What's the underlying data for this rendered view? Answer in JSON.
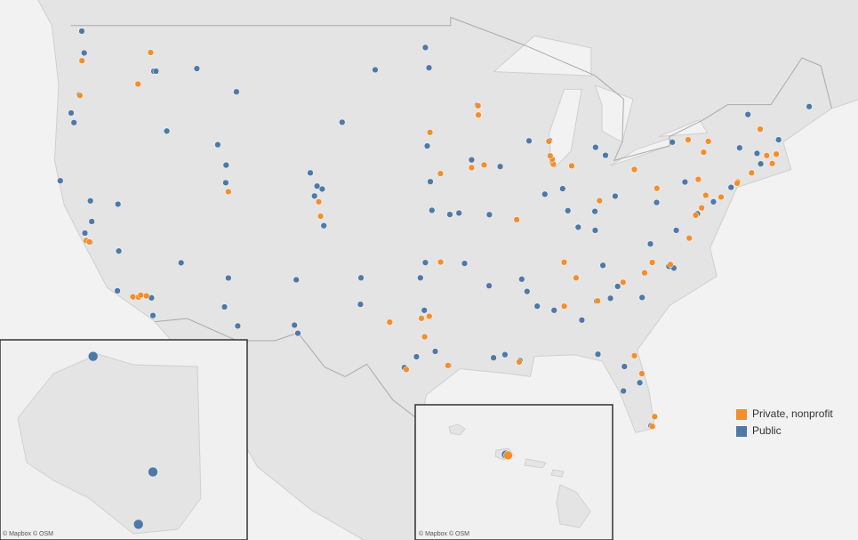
{
  "map": {
    "groups": [
      {
        "name": "Private, nonprofit",
        "color": "#f28e2b",
        "points": [
          [
            -122.17,
            37.43
          ],
          [
            -118.29,
            34.02
          ],
          [
            -118.71,
            34.04
          ],
          [
            -117.71,
            34.1
          ],
          [
            -118.13,
            34.14
          ],
          [
            -121.94,
            37.35
          ],
          [
            -111.65,
            40.25
          ],
          [
            -104.96,
            39.68
          ],
          [
            -104.82,
            38.85
          ],
          [
            -117.4,
            47.67
          ],
          [
            -118.33,
            46.07
          ],
          [
            -122.63,
            45.48
          ],
          [
            -122.48,
            47.26
          ],
          [
            -95.4,
            29.72
          ],
          [
            -96.78,
            32.84
          ],
          [
            -97.36,
            32.71
          ],
          [
            -97.12,
            31.55
          ],
          [
            -95.94,
            36.15
          ],
          [
            -95.95,
            41.27
          ],
          [
            -90.31,
            38.65
          ],
          [
            -87.6,
            41.79
          ],
          [
            -87.68,
            42.06
          ],
          [
            -86.24,
            41.7
          ],
          [
            -86.8,
            36.14
          ],
          [
            -78.94,
            36.0
          ],
          [
            -80.28,
            36.13
          ],
          [
            -84.32,
            33.79
          ],
          [
            -90.12,
            29.94
          ],
          [
            -80.28,
            25.72
          ],
          [
            -80.1,
            26.37
          ],
          [
            -81.05,
            29.19
          ],
          [
            -81.6,
            30.35
          ],
          [
            -77.07,
            38.91
          ],
          [
            -76.62,
            39.33
          ],
          [
            -75.19,
            39.95
          ],
          [
            -73.96,
            40.81
          ],
          [
            -74.0,
            40.73
          ],
          [
            -72.93,
            41.31
          ],
          [
            -71.4,
            41.83
          ],
          [
            -71.12,
            42.37
          ],
          [
            -71.1,
            42.35
          ],
          [
            -71.81,
            42.27
          ],
          [
            -72.29,
            43.7
          ],
          [
            -76.48,
            42.45
          ],
          [
            -77.63,
            43.13
          ],
          [
            -76.13,
            43.04
          ],
          [
            -79.94,
            40.44
          ],
          [
            -81.6,
            41.5
          ],
          [
            -84.18,
            39.74
          ],
          [
            -87.93,
            43.04
          ],
          [
            -93.17,
            44.94
          ],
          [
            -93.15,
            44.46
          ],
          [
            -93.65,
            41.6
          ],
          [
            -92.72,
            41.75
          ],
          [
            -76.88,
            40.95
          ],
          [
            -76.32,
            40.05
          ],
          [
            -77.54,
            37.57
          ],
          [
            -85.92,
            35.2
          ],
          [
            -86.79,
            33.46
          ],
          [
            -82.44,
            34.93
          ],
          [
            -80.85,
            35.5
          ],
          [
            -87.83,
            42.25
          ],
          [
            -96.73,
            43.53
          ],
          [
            -99.71,
            32.47
          ],
          [
            -98.48,
            29.46
          ],
          [
            -157.8,
            21.29
          ]
        ]
      },
      {
        "name": "Public",
        "color": "#4e79a7",
        "points": [
          [
            -122.31,
            47.65
          ],
          [
            -122.49,
            48.73
          ],
          [
            -117.16,
            46.73
          ],
          [
            -117.0,
            46.73
          ],
          [
            -116.2,
            43.6
          ],
          [
            -113.98,
            46.86
          ],
          [
            -111.05,
            45.67
          ],
          [
            -105.58,
            41.31
          ],
          [
            -105.08,
            40.57
          ],
          [
            -105.27,
            40.01
          ],
          [
            -111.84,
            40.76
          ],
          [
            -111.81,
            41.74
          ],
          [
            -119.81,
            39.54
          ],
          [
            -115.14,
            36.11
          ],
          [
            -110.95,
            32.23
          ],
          [
            -111.93,
            33.42
          ],
          [
            -111.65,
            35.19
          ],
          [
            -106.62,
            35.08
          ],
          [
            -106.75,
            32.28
          ],
          [
            -106.5,
            31.77
          ],
          [
            -101.87,
            33.58
          ],
          [
            -97.73,
            30.28
          ],
          [
            -96.34,
            30.62
          ],
          [
            -95.34,
            29.72
          ],
          [
            -98.62,
            29.58
          ],
          [
            -97.15,
            33.21
          ],
          [
            -97.44,
            35.2
          ],
          [
            -97.07,
            36.12
          ],
          [
            -95.26,
            38.95
          ],
          [
            -96.58,
            39.19
          ],
          [
            -96.7,
            40.82
          ],
          [
            -93.65,
            42.03
          ],
          [
            -91.53,
            41.66
          ],
          [
            -93.23,
            44.97
          ],
          [
            -89.4,
            43.07
          ],
          [
            -87.88,
            43.08
          ],
          [
            -87.65,
            41.87
          ],
          [
            -88.23,
            40.11
          ],
          [
            -86.91,
            40.42
          ],
          [
            -86.52,
            39.17
          ],
          [
            -83.02,
            40.0
          ],
          [
            -83.74,
            42.28
          ],
          [
            -84.48,
            42.72
          ],
          [
            -84.52,
            39.13
          ],
          [
            -85.76,
            38.21
          ],
          [
            -84.5,
            38.03
          ],
          [
            -83.93,
            35.95
          ],
          [
            -86.78,
            36.16
          ],
          [
            -89.94,
            35.12
          ],
          [
            -89.54,
            34.37
          ],
          [
            -88.79,
            33.46
          ],
          [
            -87.54,
            33.21
          ],
          [
            -85.49,
            32.6
          ],
          [
            -84.4,
            33.78
          ],
          [
            -83.37,
            33.95
          ],
          [
            -84.3,
            30.44
          ],
          [
            -82.34,
            29.65
          ],
          [
            -81.2,
            28.6
          ],
          [
            -82.41,
            28.06
          ],
          [
            -80.37,
            25.76
          ],
          [
            -81.03,
            34.0
          ],
          [
            -82.84,
            34.68
          ],
          [
            -78.68,
            35.79
          ],
          [
            -79.05,
            35.9
          ],
          [
            -78.5,
            38.03
          ],
          [
            -80.42,
            37.23
          ],
          [
            -76.94,
            38.99
          ],
          [
            -75.75,
            39.68
          ],
          [
            -77.86,
            40.8
          ],
          [
            -79.96,
            40.44
          ],
          [
            -74.45,
            40.5
          ],
          [
            -72.25,
            41.81
          ],
          [
            -72.53,
            42.39
          ],
          [
            -73.2,
            44.48
          ],
          [
            -70.93,
            43.13
          ],
          [
            -68.67,
            44.9
          ],
          [
            -78.79,
            43.0
          ],
          [
            -73.82,
            42.69
          ],
          [
            -79.96,
            39.64
          ],
          [
            -91.18,
            30.41
          ],
          [
            -90.07,
            30.03
          ],
          [
            -92.02,
            30.21
          ],
          [
            -94.17,
            36.07
          ],
          [
            -92.35,
            34.72
          ],
          [
            -92.33,
            38.94
          ],
          [
            -94.58,
            39.03
          ],
          [
            -96.8,
            46.9
          ],
          [
            -97.07,
            47.92
          ],
          [
            -96.93,
            42.79
          ],
          [
            -100.78,
            46.8
          ],
          [
            -103.23,
            44.07
          ],
          [
            -121.75,
            38.54
          ],
          [
            -122.26,
            37.87
          ],
          [
            -121.88,
            37.34
          ],
          [
            -119.75,
            36.81
          ],
          [
            -117.23,
            32.88
          ],
          [
            -117.33,
            33.98
          ],
          [
            -119.85,
            34.41
          ],
          [
            -123.28,
            44.56
          ],
          [
            -123.07,
            44.05
          ],
          [
            -122.68,
            45.51
          ],
          [
            -124.08,
            40.87
          ],
          [
            -121.85,
            39.73
          ],
          [
            -112.43,
            42.86
          ],
          [
            -104.7,
            40.4
          ],
          [
            -104.58,
            38.3
          ],
          [
            -101.83,
            35.2
          ],
          [
            -156.8,
            71.3
          ],
          [
            -147.7,
            64.8
          ],
          [
            -149.9,
            61.2
          ],
          [
            -157.86,
            21.31
          ]
        ]
      }
    ],
    "attributions": [
      "© Mapbox © OSM",
      "© Mapbox © OSM"
    ]
  }
}
